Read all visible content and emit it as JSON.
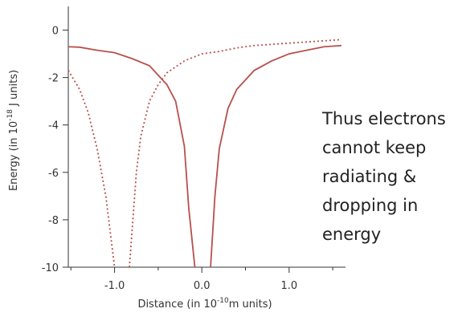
{
  "chart_data": {
    "type": "line",
    "ylabel_parts": [
      "Energy (in 10",
      "-18",
      " J units)"
    ],
    "xlabel_parts": [
      "Distance (in 10",
      "-10",
      "m units)"
    ],
    "annotation": [
      "Thus electrons",
      "cannot keep",
      "radiating &",
      "dropping in",
      "energy"
    ],
    "xlim": [
      -1.53,
      1.6
    ],
    "ylim": [
      -10,
      1
    ],
    "xticks": [
      {
        "value": -1,
        "label": "-1.0"
      },
      {
        "value": 0,
        "label": "0.0"
      },
      {
        "value": 1,
        "label": "1.0"
      }
    ],
    "xminor_ticks": [
      -1.5,
      -0.5,
      0.5,
      1.5
    ],
    "yticks": [
      0,
      -2,
      -4,
      -6,
      -8,
      -10
    ],
    "series": [
      {
        "color": "#b8504c",
        "dash": "solid",
        "x": [
          -1.53,
          -1.4,
          -1.2,
          -1.0,
          -0.8,
          -0.6,
          -0.4,
          -0.3,
          -0.2,
          -0.15,
          -0.08,
          null,
          0.1,
          0.15,
          0.2,
          0.3,
          0.4,
          0.6,
          0.8,
          1.0,
          1.2,
          1.4,
          1.6
        ],
        "values": [
          -0.7,
          -0.72,
          -0.85,
          -0.95,
          -1.2,
          -1.5,
          -2.3,
          -3.0,
          -4.9,
          -7.5,
          -10,
          null,
          -10,
          -7.0,
          -5.0,
          -3.3,
          -2.5,
          -1.7,
          -1.3,
          -1.0,
          -0.85,
          -0.7,
          -0.65
        ]
      },
      {
        "color": "#b8504c",
        "dash": "dotted",
        "x": [
          -1.53,
          -1.4,
          -1.3,
          -1.2,
          -1.1,
          -1.0,
          null,
          -0.83,
          -0.75,
          -0.7,
          -0.6,
          -0.5,
          -0.4,
          -0.2,
          0,
          0.2,
          0.4,
          0.6,
          0.8,
          1.0,
          1.2,
          1.4,
          1.6
        ],
        "values": [
          -1.7,
          -2.5,
          -3.5,
          -5,
          -7,
          -10,
          null,
          -10,
          -6,
          -4.5,
          -3.0,
          -2.3,
          -1.8,
          -1.3,
          -1.0,
          -0.9,
          -0.75,
          -0.65,
          -0.6,
          -0.55,
          -0.5,
          -0.45,
          -0.4
        ]
      }
    ]
  }
}
